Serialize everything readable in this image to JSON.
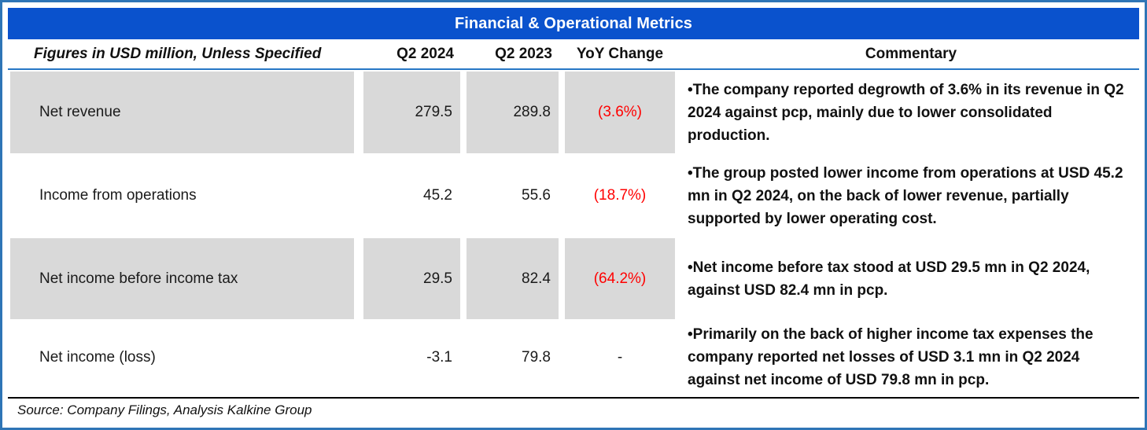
{
  "title": "Financial & Operational Metrics",
  "colors": {
    "title_bar_bg": "#0a52cd",
    "frame_border": "#2e75b6",
    "shaded_row_bg": "#d9d9d9",
    "negative_value": "#ff0000",
    "neutral_value": "#1a1a1a"
  },
  "table": {
    "headers": {
      "label": "Figures in USD million, Unless Specified",
      "q2_2024": "Q2 2024",
      "q2_2023": "Q2 2023",
      "yoy": "YoY Change",
      "commentary": "Commentary"
    },
    "rows": [
      {
        "label": "Net revenue",
        "q2_2024": "279.5",
        "q2_2023": "289.8",
        "yoy": "(3.6%)",
        "yoy_color": "#ff0000",
        "commentary": "•The company reported degrowth of 3.6% in its revenue in Q2 2024 against pcp, mainly due to lower consolidated production."
      },
      {
        "label": "Income from operations",
        "q2_2024": "45.2",
        "q2_2023": "55.6",
        "yoy": "(18.7%)",
        "yoy_color": "#ff0000",
        "commentary": "•The group posted lower income from operations at USD 45.2 mn in Q2 2024, on the back of lower revenue, partially supported by lower operating cost."
      },
      {
        "label": "Net income before income tax",
        "q2_2024": "29.5",
        "q2_2023": "82.4",
        "yoy": "(64.2%)",
        "yoy_color": "#ff0000",
        "commentary": "•Net income before tax stood at USD 29.5 mn in Q2 2024, against USD 82.4 mn in pcp."
      },
      {
        "label": "Net income (loss)",
        "q2_2024": "-3.1",
        "q2_2023": "79.8",
        "yoy": "-",
        "yoy_color": "#1a1a1a",
        "commentary": "•Primarily on the back of higher income tax expenses the company reported net losses of USD 3.1 mn in Q2 2024 against net income of USD 79.8 mn in pcp."
      }
    ]
  },
  "source": "Source: Company Filings, Analysis Kalkine Group",
  "chart_data": {
    "type": "table",
    "title": "Financial & Operational Metrics",
    "unit_note": "Figures in USD million, Unless Specified",
    "columns": [
      "Q2 2024",
      "Q2 2023",
      "YoY Change"
    ],
    "categories": [
      "Net revenue",
      "Income from operations",
      "Net income before income tax",
      "Net income (loss)"
    ],
    "series": [
      {
        "name": "Q2 2024",
        "values": [
          279.5,
          45.2,
          29.5,
          -3.1
        ]
      },
      {
        "name": "Q2 2023",
        "values": [
          289.8,
          55.6,
          82.4,
          79.8
        ]
      },
      {
        "name": "YoY Change",
        "values": [
          "-3.6%",
          "-18.7%",
          "-64.2%",
          null
        ]
      }
    ]
  }
}
